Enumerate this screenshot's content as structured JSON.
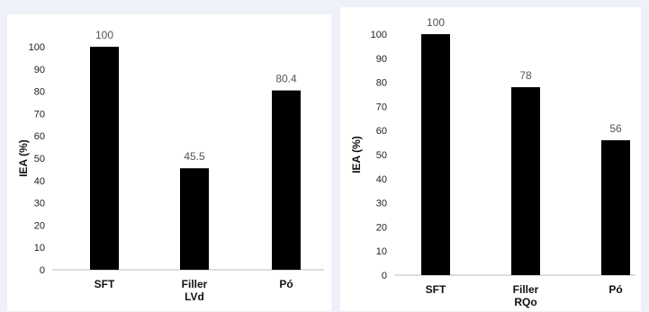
{
  "chart_data": [
    {
      "type": "bar",
      "categories": [
        "SFT",
        "Filler\nLVd",
        "Pó"
      ],
      "values": [
        100,
        45.5,
        80.4
      ],
      "value_labels": [
        "100",
        "45.5",
        "80.4"
      ],
      "yticks": [
        "0",
        "10",
        "20",
        "30",
        "40",
        "50",
        "60",
        "70",
        "80",
        "90",
        "100"
      ],
      "ylabel": "IEA (%)",
      "xlabel": "",
      "title": "",
      "ylim": [
        0,
        100
      ],
      "grid": false,
      "bar_color": "#000000"
    },
    {
      "type": "bar",
      "categories": [
        "SFT",
        "Filler\nRQo",
        "Pó"
      ],
      "values": [
        100,
        78,
        56
      ],
      "value_labels": [
        "100",
        "78",
        "56"
      ],
      "yticks": [
        "0",
        "10",
        "20",
        "30",
        "40",
        "50",
        "60",
        "70",
        "80",
        "90",
        "100"
      ],
      "ylabel": "IEA (%)",
      "xlabel": "",
      "title": "",
      "ylim": [
        0,
        100
      ],
      "grid": false,
      "bar_color": "#000000"
    }
  ]
}
